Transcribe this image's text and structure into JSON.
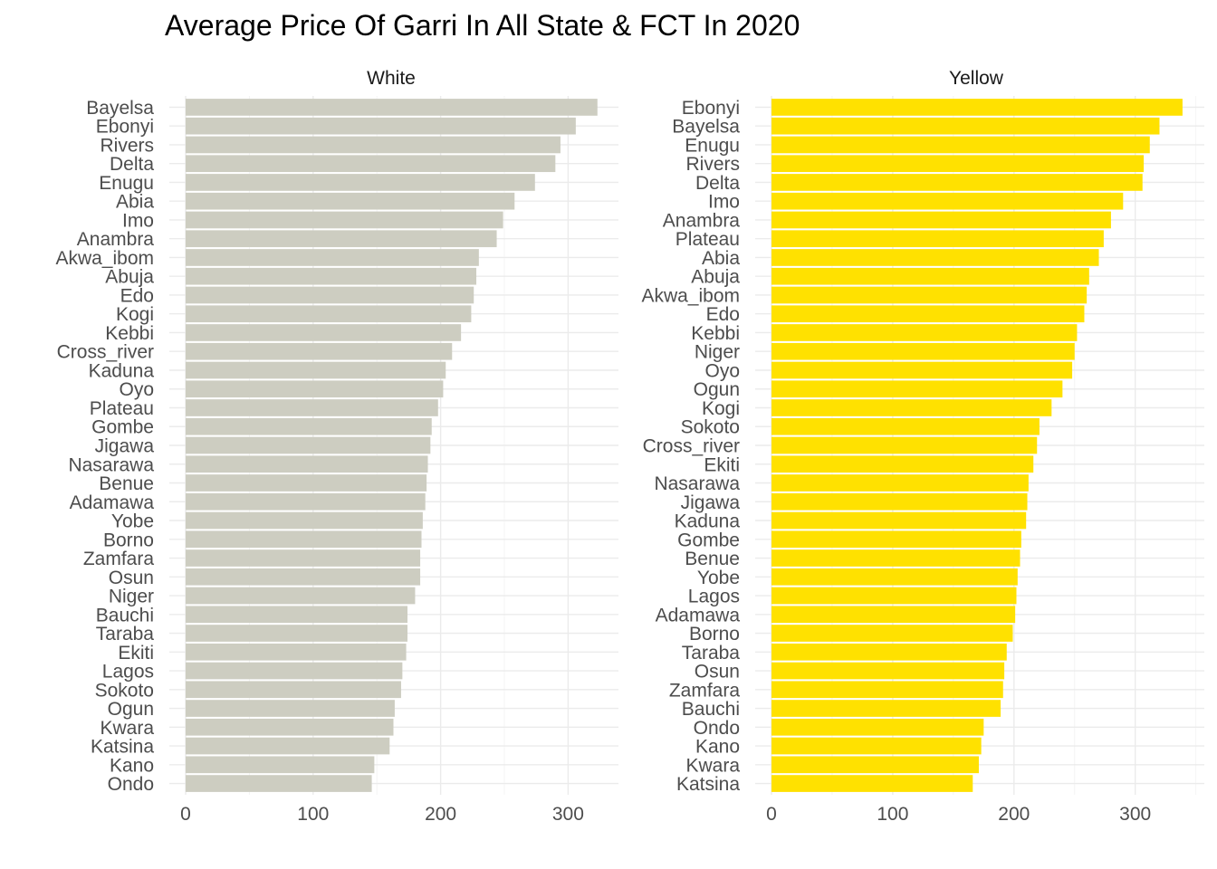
{
  "chart_data": {
    "type": "bar",
    "title": "Average Price Of Garri In All State & FCT In 2020",
    "xlabel": "",
    "ylabel": "",
    "xlim": [
      0,
      350
    ],
    "x_ticks": [
      "0",
      "100",
      "200",
      "300"
    ],
    "grid": true,
    "orientation": "horizontal",
    "panels": [
      {
        "name": "White",
        "color": "#CDCDC1",
        "categories": [
          "Bayelsa",
          "Ebonyi",
          "Rivers",
          "Delta",
          "Enugu",
          "Abia",
          "Imo",
          "Anambra",
          "Akwa_ibom",
          "Abuja",
          "Edo",
          "Kogi",
          "Kebbi",
          "Cross_river",
          "Kaduna",
          "Oyo",
          "Plateau",
          "Gombe",
          "Jigawa",
          "Nasarawa",
          "Benue",
          "Adamawa",
          "Yobe",
          "Borno",
          "Zamfara",
          "Osun",
          "Niger",
          "Bauchi",
          "Taraba",
          "Ekiti",
          "Lagos",
          "Sokoto",
          "Ogun",
          "Kwara",
          "Katsina",
          "Kano",
          "Ondo"
        ],
        "values": [
          323,
          306,
          294,
          290,
          274,
          258,
          249,
          244,
          230,
          228,
          226,
          224,
          216,
          209,
          204,
          202,
          198,
          193,
          192,
          190,
          189,
          188,
          186,
          185,
          184,
          184,
          180,
          174,
          174,
          173,
          170,
          169,
          164,
          163,
          160,
          148,
          146
        ]
      },
      {
        "name": "Yellow",
        "color": "#FFE100",
        "categories": [
          "Ebonyi",
          "Bayelsa",
          "Enugu",
          "Rivers",
          "Delta",
          "Imo",
          "Anambra",
          "Plateau",
          "Abia",
          "Abuja",
          "Akwa_ibom",
          "Edo",
          "Kebbi",
          "Niger",
          "Oyo",
          "Ogun",
          "Kogi",
          "Sokoto",
          "Cross_river",
          "Ekiti",
          "Nasarawa",
          "Jigawa",
          "Kaduna",
          "Gombe",
          "Benue",
          "Yobe",
          "Lagos",
          "Adamawa",
          "Borno",
          "Taraba",
          "Osun",
          "Zamfara",
          "Bauchi",
          "Ondo",
          "Kano",
          "Kwara",
          "Katsina"
        ],
        "values": [
          339,
          320,
          312,
          307,
          306,
          290,
          280,
          274,
          270,
          262,
          260,
          258,
          252,
          250,
          248,
          240,
          231,
          221,
          219,
          216,
          212,
          211,
          210,
          206,
          205,
          203,
          202,
          201,
          199,
          194,
          192,
          191,
          189,
          175,
          173,
          171,
          166
        ]
      }
    ]
  }
}
